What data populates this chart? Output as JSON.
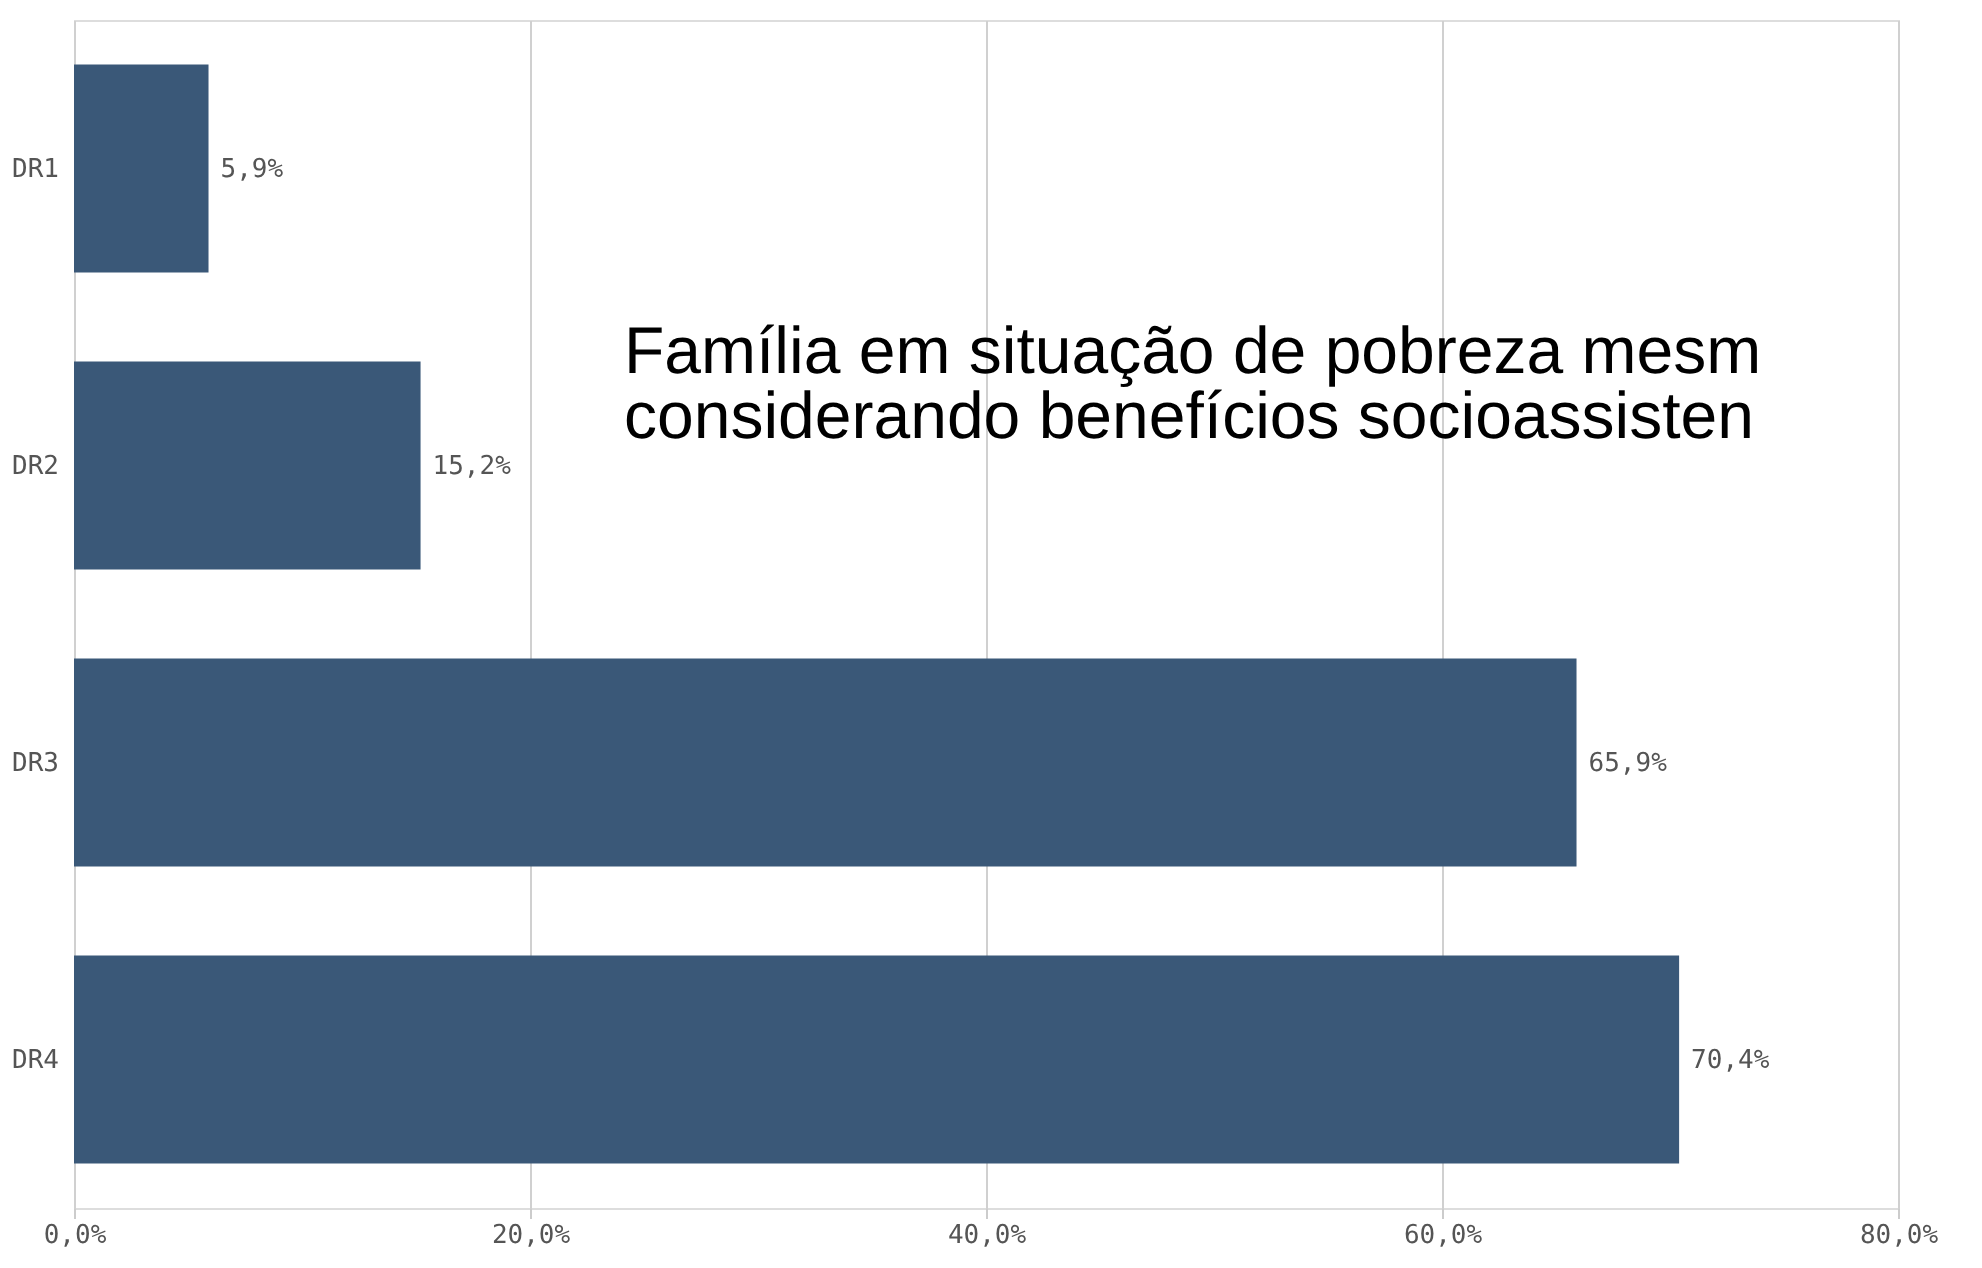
{
  "chart_data": {
    "type": "bar",
    "orientation": "horizontal",
    "categories": [
      "DR1",
      "DR2",
      "DR3",
      "DR4"
    ],
    "values": [
      5.9,
      15.2,
      65.9,
      70.4
    ],
    "value_labels": [
      "5,9%",
      "15,2%",
      "65,9%",
      "70,4%"
    ],
    "color": "#3a5878",
    "xlim": [
      0,
      80
    ],
    "xticks": [
      {
        "value": 0,
        "label": "0,0%"
      },
      {
        "value": 20,
        "label": "20,0%"
      },
      {
        "value": 40,
        "label": "40,0%"
      },
      {
        "value": 60,
        "label": "60,0%"
      },
      {
        "value": 80,
        "label": "80,0%"
      }
    ],
    "grid": "x",
    "annotations": [
      "Família em situação de pobreza mesm",
      "considerando benefícios socioassisten"
    ]
  }
}
